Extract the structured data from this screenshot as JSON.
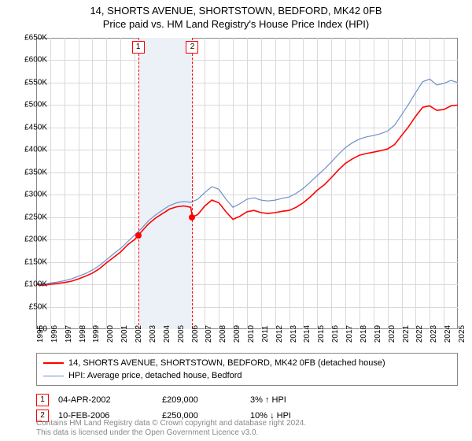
{
  "title": "14, SHORTS AVENUE, SHORTSTOWN, BEDFORD, MK42 0FB",
  "subtitle": "Price paid vs. HM Land Registry's House Price Index (HPI)",
  "chart": {
    "type": "line",
    "background_color": "#ffffff",
    "grid_color": "#d9d9d9",
    "border_color": "#888888",
    "x_axis": {
      "min": 1995,
      "max": 2025,
      "ticks": [
        1995,
        1996,
        1997,
        1998,
        1999,
        2000,
        2001,
        2002,
        2003,
        2004,
        2005,
        2006,
        2007,
        2008,
        2009,
        2010,
        2011,
        2012,
        2013,
        2014,
        2015,
        2016,
        2017,
        2018,
        2019,
        2020,
        2021,
        2022,
        2023,
        2024,
        2025
      ],
      "label_fontsize": 10,
      "rotation": -90
    },
    "y_axis": {
      "min": 0,
      "max": 650000,
      "ticks": [
        0,
        50000,
        100000,
        150000,
        200000,
        250000,
        300000,
        350000,
        400000,
        450000,
        500000,
        550000,
        600000,
        650000
      ],
      "tick_labels": [
        "£0",
        "£50K",
        "£100K",
        "£150K",
        "£200K",
        "£250K",
        "£300K",
        "£350K",
        "£400K",
        "£450K",
        "£500K",
        "£550K",
        "£600K",
        "£650K"
      ],
      "label_fontsize": 10
    },
    "marker_band": {
      "from": 2002.26,
      "to": 2006.11,
      "color": "#ecf1f8"
    },
    "sale_markers": [
      {
        "n": "1",
        "x": 2002.26,
        "price": 209000
      },
      {
        "n": "2",
        "x": 2006.11,
        "price": 250000
      }
    ],
    "series": [
      {
        "name": "14, SHORTS AVENUE, SHORTSTOWN, BEDFORD, MK42 0FB (detached house)",
        "color": "#ff0000",
        "line_width": 1.6,
        "data": [
          [
            1995,
            100000
          ],
          [
            1995.5,
            98000
          ],
          [
            1996,
            100000
          ],
          [
            1996.5,
            102000
          ],
          [
            1997,
            104000
          ],
          [
            1997.5,
            107000
          ],
          [
            1998,
            112000
          ],
          [
            1998.5,
            118000
          ],
          [
            1999,
            125000
          ],
          [
            1999.5,
            135000
          ],
          [
            2000,
            148000
          ],
          [
            2000.5,
            160000
          ],
          [
            2001,
            172000
          ],
          [
            2001.5,
            188000
          ],
          [
            2002,
            200000
          ],
          [
            2002.26,
            209000
          ],
          [
            2002.5,
            218000
          ],
          [
            2003,
            235000
          ],
          [
            2003.5,
            248000
          ],
          [
            2004,
            258000
          ],
          [
            2004.5,
            268000
          ],
          [
            2005,
            273000
          ],
          [
            2005.5,
            275000
          ],
          [
            2006,
            272000
          ],
          [
            2006.11,
            250000
          ],
          [
            2006.5,
            256000
          ],
          [
            2007,
            275000
          ],
          [
            2007.5,
            288000
          ],
          [
            2008,
            282000
          ],
          [
            2008.5,
            262000
          ],
          [
            2009,
            245000
          ],
          [
            2009.5,
            252000
          ],
          [
            2010,
            262000
          ],
          [
            2010.5,
            265000
          ],
          [
            2011,
            260000
          ],
          [
            2011.5,
            258000
          ],
          [
            2012,
            260000
          ],
          [
            2012.5,
            263000
          ],
          [
            2013,
            265000
          ],
          [
            2013.5,
            272000
          ],
          [
            2014,
            282000
          ],
          [
            2014.5,
            295000
          ],
          [
            2015,
            310000
          ],
          [
            2015.5,
            322000
          ],
          [
            2016,
            338000
          ],
          [
            2016.5,
            355000
          ],
          [
            2017,
            370000
          ],
          [
            2017.5,
            380000
          ],
          [
            2018,
            388000
          ],
          [
            2018.5,
            392000
          ],
          [
            2019,
            395000
          ],
          [
            2019.5,
            398000
          ],
          [
            2020,
            402000
          ],
          [
            2020.5,
            412000
          ],
          [
            2021,
            432000
          ],
          [
            2021.5,
            452000
          ],
          [
            2022,
            475000
          ],
          [
            2022.5,
            495000
          ],
          [
            2023,
            498000
          ],
          [
            2023.5,
            488000
          ],
          [
            2024,
            490000
          ],
          [
            2024.5,
            498000
          ],
          [
            2025,
            500000
          ]
        ]
      },
      {
        "name": "HPI: Average price, detached house, Bedford",
        "color": "#6f8fc8",
        "line_width": 1.2,
        "data": [
          [
            1995,
            102000
          ],
          [
            1995.5,
            100000
          ],
          [
            1996,
            103000
          ],
          [
            1996.5,
            105000
          ],
          [
            1997,
            108000
          ],
          [
            1997.5,
            112000
          ],
          [
            1998,
            118000
          ],
          [
            1998.5,
            124000
          ],
          [
            1999,
            132000
          ],
          [
            1999.5,
            142000
          ],
          [
            2000,
            155000
          ],
          [
            2000.5,
            168000
          ],
          [
            2001,
            180000
          ],
          [
            2001.5,
            195000
          ],
          [
            2002,
            210000
          ],
          [
            2002.5,
            225000
          ],
          [
            2003,
            242000
          ],
          [
            2003.5,
            255000
          ],
          [
            2004,
            266000
          ],
          [
            2004.5,
            276000
          ],
          [
            2005,
            282000
          ],
          [
            2005.5,
            285000
          ],
          [
            2006,
            283000
          ],
          [
            2006.5,
            290000
          ],
          [
            2007,
            305000
          ],
          [
            2007.5,
            318000
          ],
          [
            2008,
            312000
          ],
          [
            2008.5,
            290000
          ],
          [
            2009,
            272000
          ],
          [
            2009.5,
            280000
          ],
          [
            2010,
            290000
          ],
          [
            2010.5,
            293000
          ],
          [
            2011,
            288000
          ],
          [
            2011.5,
            286000
          ],
          [
            2012,
            288000
          ],
          [
            2012.5,
            292000
          ],
          [
            2013,
            295000
          ],
          [
            2013.5,
            303000
          ],
          [
            2014,
            314000
          ],
          [
            2014.5,
            328000
          ],
          [
            2015,
            343000
          ],
          [
            2015.5,
            357000
          ],
          [
            2016,
            373000
          ],
          [
            2016.5,
            390000
          ],
          [
            2017,
            405000
          ],
          [
            2017.5,
            416000
          ],
          [
            2018,
            424000
          ],
          [
            2018.5,
            429000
          ],
          [
            2019,
            432000
          ],
          [
            2019.5,
            436000
          ],
          [
            2020,
            442000
          ],
          [
            2020.5,
            455000
          ],
          [
            2021,
            478000
          ],
          [
            2021.5,
            502000
          ],
          [
            2022,
            528000
          ],
          [
            2022.5,
            552000
          ],
          [
            2023,
            558000
          ],
          [
            2023.5,
            545000
          ],
          [
            2024,
            548000
          ],
          [
            2024.5,
            555000
          ],
          [
            2025,
            550000
          ]
        ]
      }
    ]
  },
  "legend": {
    "items": [
      {
        "label": "14, SHORTS AVENUE, SHORTSTOWN, BEDFORD, MK42 0FB (detached house)",
        "color": "#ff0000",
        "width": 2
      },
      {
        "label": "HPI: Average price, detached house, Bedford",
        "color": "#6f8fc8",
        "width": 1
      }
    ]
  },
  "sales": [
    {
      "n": "1",
      "date": "04-APR-2002",
      "price": "£209,000",
      "hpi": "3% ↑ HPI"
    },
    {
      "n": "2",
      "date": "10-FEB-2006",
      "price": "£250,000",
      "hpi": "10% ↓ HPI"
    }
  ],
  "footer": {
    "line1": "Contains HM Land Registry data © Crown copyright and database right 2024.",
    "line2": "This data is licensed under the Open Government Licence v3.0."
  }
}
